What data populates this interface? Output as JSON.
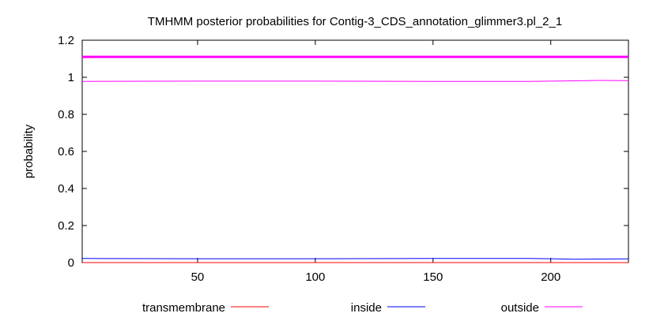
{
  "chart_data": {
    "type": "line",
    "title": "TMHMM posterior probabilities for Contig-3_CDS_annotation_glimmer3.pl_2_1",
    "xlabel": "",
    "ylabel": "probability",
    "xlim": [
      1,
      233
    ],
    "ylim": [
      0,
      1.2
    ],
    "xticks": [
      50,
      100,
      150,
      200
    ],
    "yticks": [
      0,
      0.2,
      0.4,
      0.6,
      0.8,
      1,
      1.2
    ],
    "ytick_labels": [
      "0",
      "0.2",
      "0.4",
      "0.6",
      "0.8",
      "1",
      "1.2"
    ],
    "grid": false,
    "legend_position": "bottom",
    "topology_band": {
      "y": 1.11,
      "color": "#ff00ff",
      "label": "outside"
    },
    "series": [
      {
        "name": "transmembrane",
        "color": "#ff0000",
        "x": [
          1,
          233
        ],
        "y": [
          0,
          0
        ]
      },
      {
        "name": "inside",
        "color": "#0000ff",
        "x": [
          1,
          50,
          100,
          150,
          190,
          200,
          210,
          220,
          233
        ],
        "y": [
          0.022,
          0.021,
          0.021,
          0.022,
          0.022,
          0.021,
          0.018,
          0.019,
          0.02
        ]
      },
      {
        "name": "outside",
        "color": "#ff00ff",
        "x": [
          1,
          50,
          100,
          150,
          190,
          200,
          210,
          220,
          233
        ],
        "y": [
          0.978,
          0.979,
          0.979,
          0.978,
          0.978,
          0.979,
          0.981,
          0.983,
          0.982
        ]
      }
    ]
  }
}
